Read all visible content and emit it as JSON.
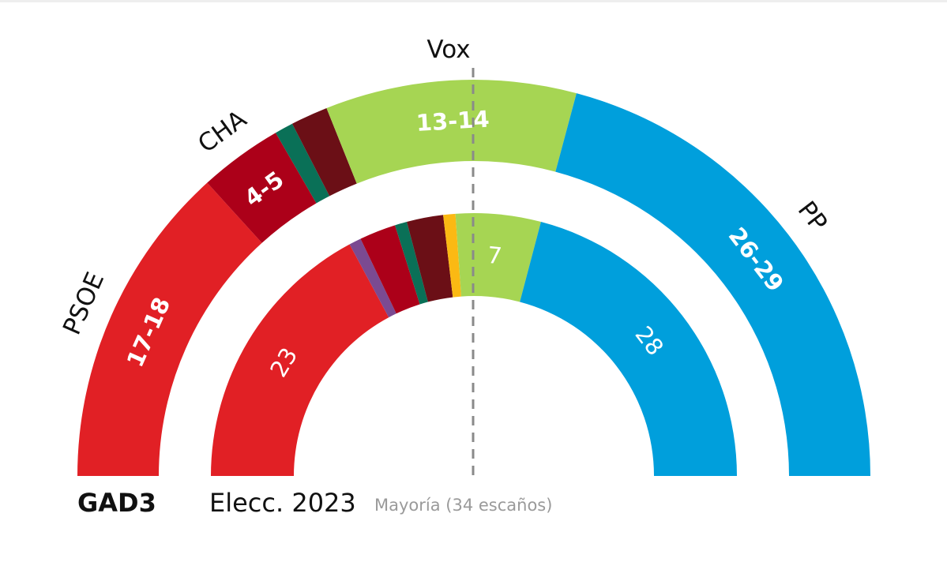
{
  "chart_data": {
    "type": "parliament-semicircle",
    "total_seats": 67,
    "majority_label": "Mayoría (34 escaños)",
    "majority": 34,
    "rings": [
      {
        "name": "GAD3",
        "position": "outer",
        "segments": [
          {
            "party": "PSOE",
            "seats": 17.5,
            "label": "17-18",
            "color": "#e12025"
          },
          {
            "party": "CHA",
            "seats": 4.5,
            "label": "4-5",
            "color": "#ac0019"
          },
          {
            "party": "Otros (verde)",
            "seats": 1,
            "label": "",
            "color": "#0a7057"
          },
          {
            "party": "Otros (granate)",
            "seats": 2,
            "label": "",
            "color": "#6b0f16"
          },
          {
            "party": "Vox",
            "seats": 13.5,
            "label": "13-14",
            "color": "#a6d553"
          },
          {
            "party": "PP",
            "seats": 27.5,
            "label": "26-29",
            "color": "#009fdc"
          }
        ]
      },
      {
        "name": "Elecc. 2023",
        "position": "inner",
        "segments": [
          {
            "party": "PSOE",
            "seats": 23,
            "label": "23",
            "color": "#e12025"
          },
          {
            "party": "Morado",
            "seats": 1,
            "label": "",
            "color": "#7b4a91"
          },
          {
            "party": "CHA",
            "seats": 3,
            "label": "",
            "color": "#ac0019"
          },
          {
            "party": "Otros (verde)",
            "seats": 1,
            "label": "",
            "color": "#0a7057"
          },
          {
            "party": "Otros (granate)",
            "seats": 3,
            "label": "",
            "color": "#6b0f16"
          },
          {
            "party": "Amarillo",
            "seats": 1,
            "label": "",
            "color": "#fbb913"
          },
          {
            "party": "Vox",
            "seats": 7,
            "label": "7",
            "color": "#a6d553"
          },
          {
            "party": "PP",
            "seats": 28,
            "label": "28",
            "color": "#009fdc"
          }
        ]
      }
    ],
    "party_labels": [
      {
        "party": "PSOE",
        "text": "PSOE"
      },
      {
        "party": "CHA",
        "text": "CHA"
      },
      {
        "party": "Vox",
        "text": "Vox"
      },
      {
        "party": "PP",
        "text": "PP"
      }
    ],
    "legend": {
      "outer": "GAD3",
      "inner": "Elecc. 2023",
      "majority": "Mayoría (34 escaños)"
    }
  }
}
